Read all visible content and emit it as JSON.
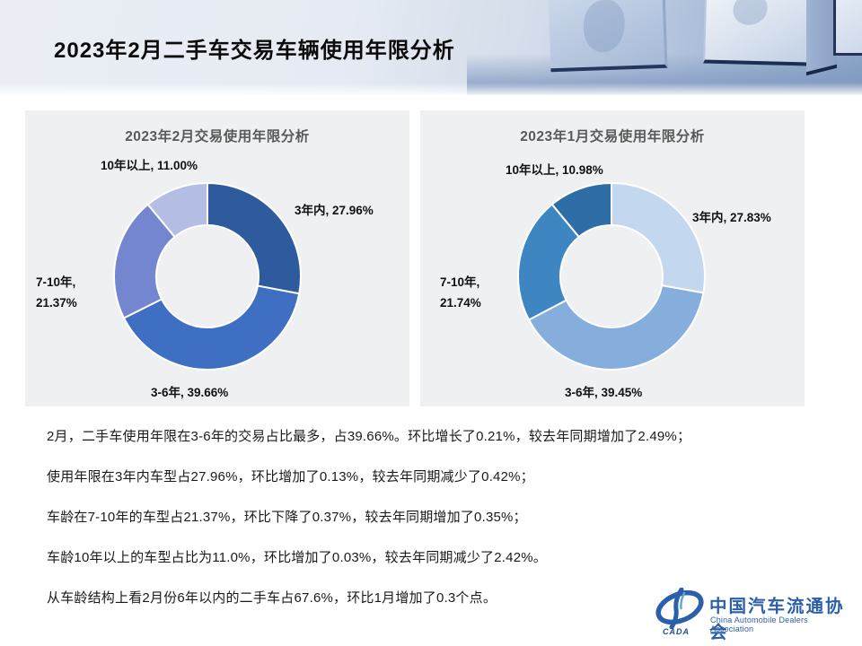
{
  "header": {
    "title": "2023年2月二手车交易车辆使用年限分析"
  },
  "chart_data": [
    {
      "type": "pie",
      "donut": true,
      "title": "2023年2月交易使用年限分析",
      "categories": [
        "3年内",
        "3-6年",
        "7-10年",
        "10年以上"
      ],
      "values": [
        27.96,
        39.66,
        21.37,
        11.0
      ],
      "colors": [
        "#2e5b9e",
        "#3f6fc2",
        "#7486cf",
        "#b4bde4"
      ],
      "start_angle_deg": 0,
      "direction": "clockwise",
      "labels": {
        "over10": "10年以上, 11.00%",
        "within3": "3年内, 27.96%",
        "y7to10": "7-10年,\n21.37%",
        "y3to6": "3-6年, 39.66%"
      }
    },
    {
      "type": "pie",
      "donut": true,
      "title": "2023年1月交易使用年限分析",
      "categories": [
        "3年内",
        "3-6年",
        "7-10年",
        "10年以上"
      ],
      "values": [
        27.83,
        39.45,
        21.74,
        10.98
      ],
      "colors": [
        "#c3d8ee",
        "#85aedd",
        "#3d86c2",
        "#2e6da6"
      ],
      "start_angle_deg": 0,
      "direction": "clockwise",
      "labels": {
        "over10": "10年以上, 10.98%",
        "within3": "3年内, 27.83%",
        "y7to10": "7-10年,\n21.74%",
        "y3to6": "3-6年, 39.45%"
      }
    }
  ],
  "notes": [
    "2月，二手车使用年限在3-6年的交易占比最多，占39.66%。环比增长了0.21%，较去年同期增加了2.49%；",
    "使用年限在3年内车型占27.96%，环比增加了0.13%，较去年同期减少了0.42%；",
    "车龄在7-10年的车型占21.37%，环比下降了0.37%，较去年同期增加了0.35%；",
    "车龄10年以上的车型占比为11.0%，环比增加了0.03%，较去年同期减少了2.42%。",
    "从车龄结构上看2月份6年以内的二手车占67.6%，环比1月增加了0.3个点。"
  ],
  "logo": {
    "acronym": "CADA",
    "name_zh": "中国汽车流通协会",
    "name_en": "China Automobile Dealers Association",
    "brand_color": "#2b5fa9"
  }
}
